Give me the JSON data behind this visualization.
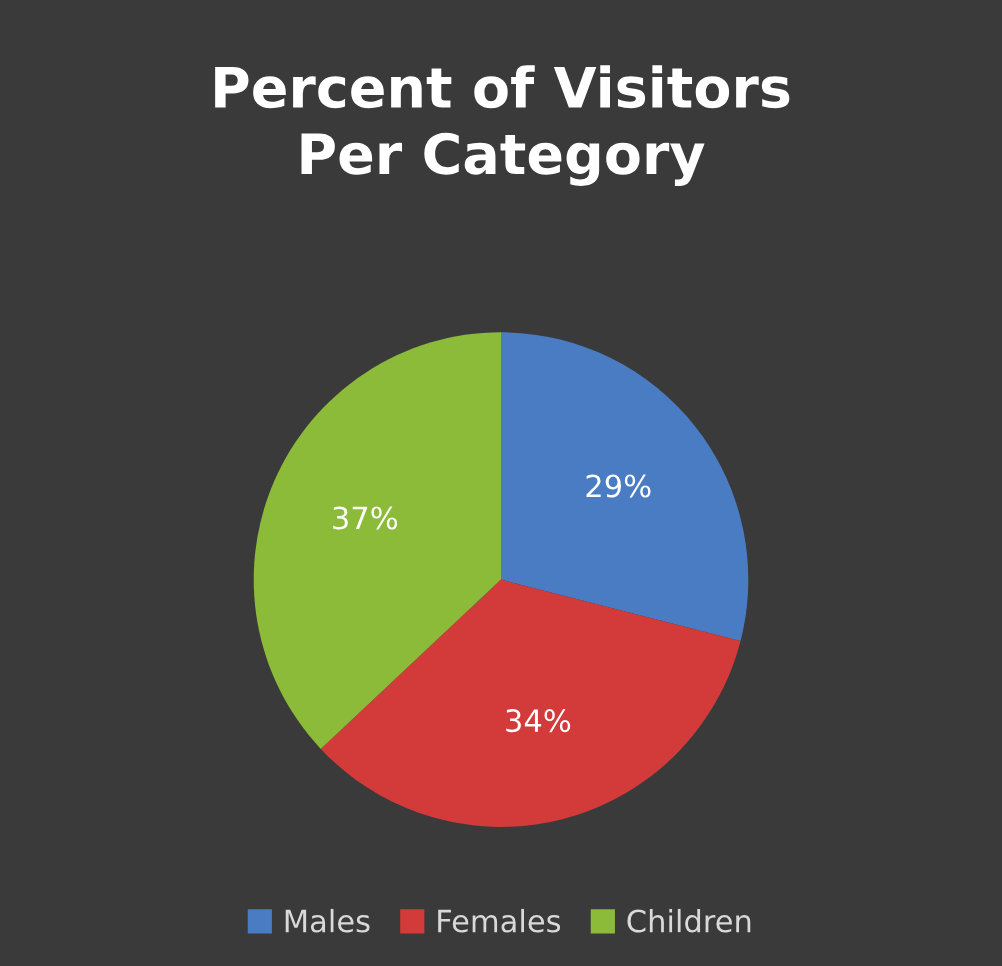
{
  "chart_data": {
    "type": "pie",
    "title": "Percent of Visitors\nPer Category",
    "categories": [
      "Males",
      "Females",
      "Children"
    ],
    "values": [
      29,
      34,
      37
    ],
    "colors": [
      "#4a7cc4",
      "#d33b3b",
      "#8cbb3a"
    ],
    "value_labels": [
      "29%",
      "34%",
      "37%"
    ],
    "legend": "bottom"
  }
}
